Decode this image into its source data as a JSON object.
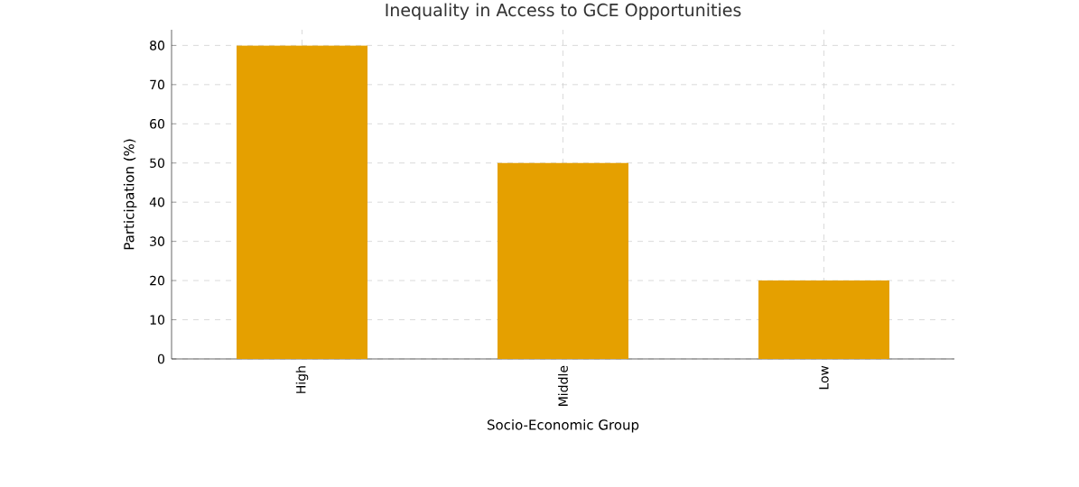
{
  "chart_data": {
    "type": "bar",
    "title": "Inequality in Access to GCE Opportunities",
    "xlabel": "Socio-Economic Group",
    "ylabel": "Participation (%)",
    "categories": [
      "High",
      "Middle",
      "Low"
    ],
    "values": [
      80,
      50,
      20
    ],
    "color": "#e5a000",
    "ylim": [
      0,
      84
    ],
    "yticks": [
      0,
      10,
      20,
      30,
      40,
      50,
      60,
      70,
      80
    ],
    "grid": true
  }
}
